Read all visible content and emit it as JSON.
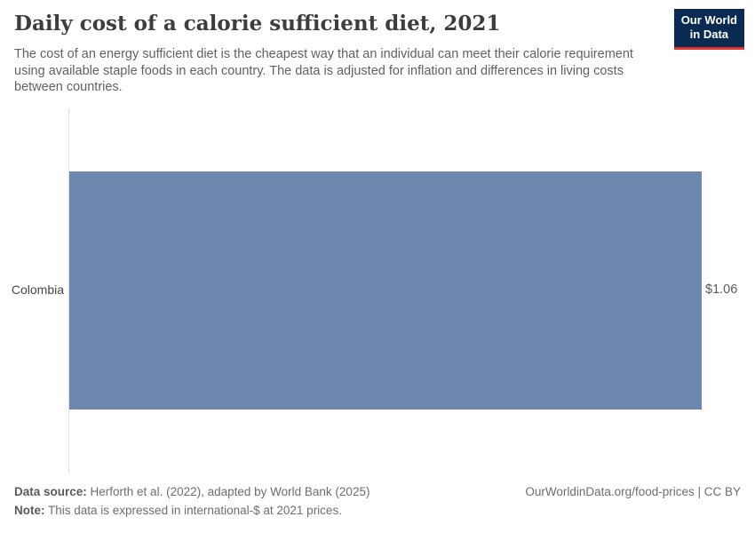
{
  "header": {
    "title": "Daily cost of a calorie sufficient diet, 2021",
    "subtitle": "The cost of an energy sufficient diet is the cheapest way that an individual can meet their calorie requirement using available staple foods in each country. The data is adjusted for inflation and differences in living costs between countries.",
    "logo": {
      "line1": "Our World",
      "line2": "in Data",
      "bg_color": "#0b2a51",
      "accent_color": "#e0362c",
      "text_color": "#ffffff"
    }
  },
  "chart_data": {
    "type": "bar",
    "orientation": "horizontal",
    "title": "Daily cost of a calorie sufficient diet, 2021",
    "categories": [
      "Colombia"
    ],
    "values": [
      1.06
    ],
    "value_labels": [
      "$1.06"
    ],
    "xlabel": "",
    "ylabel": "",
    "xlim": [
      0,
      1.06
    ],
    "grid": false,
    "legend": false,
    "bar_color": "#6e87ae",
    "axis_line_color": "#dedede"
  },
  "footer": {
    "source_label": "Data source:",
    "source_text": " Herforth et al. (2022), adapted by World Bank (2025)",
    "note_label": "Note:",
    "note_text": " This data is expressed in international-$ at 2021 prices.",
    "attribution": "OurWorldinData.org/food-prices | CC BY"
  }
}
